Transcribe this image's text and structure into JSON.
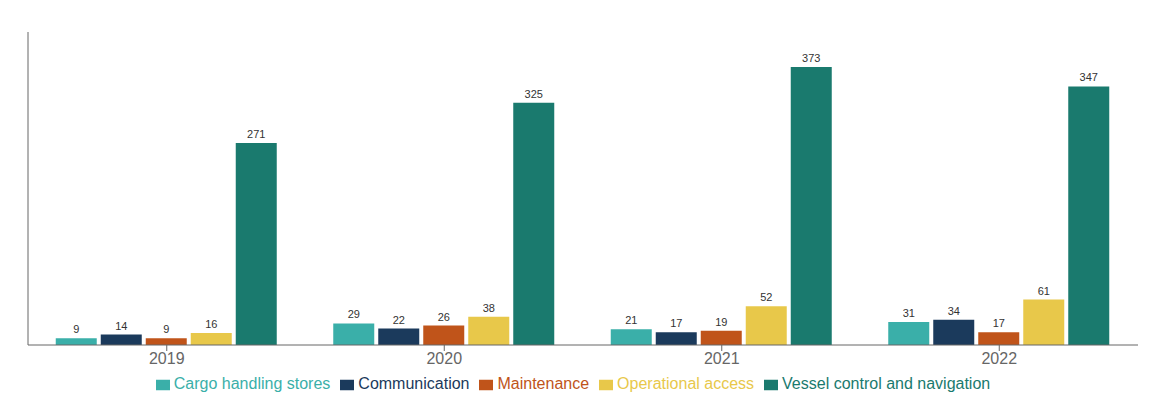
{
  "chart_data": {
    "type": "bar",
    "categories": [
      "2019",
      "2020",
      "2021",
      "2022"
    ],
    "series": [
      {
        "name": "Cargo handling stores",
        "color": "#3aafa9",
        "values": [
          9,
          29,
          21,
          31
        ]
      },
      {
        "name": "Communication",
        "color": "#1b3a5c",
        "values": [
          14,
          22,
          17,
          34
        ]
      },
      {
        "name": "Maintenance",
        "color": "#c0541a",
        "values": [
          9,
          26,
          19,
          17
        ]
      },
      {
        "name": "Operational access",
        "color": "#e8c84a",
        "values": [
          16,
          38,
          52,
          61
        ]
      },
      {
        "name": "Vessel control and navigation",
        "color": "#1a7a6e",
        "values": [
          271,
          325,
          373,
          347
        ]
      }
    ],
    "ylim": [
      0,
      420
    ],
    "data_labels": true,
    "tick_labels": "x",
    "grid": false,
    "legend": "bottom"
  }
}
